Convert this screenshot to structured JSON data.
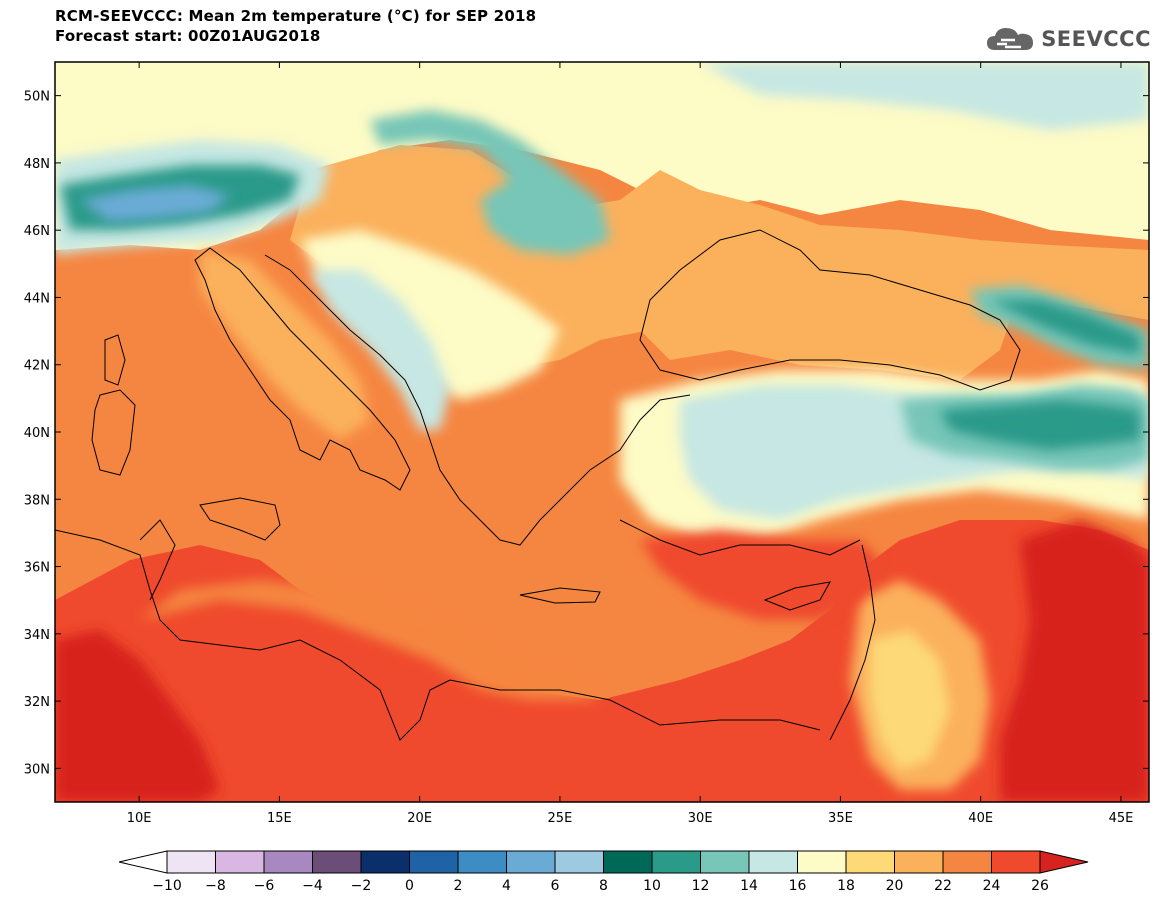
{
  "header": {
    "title_line1": "RCM-SEEVCCC: Mean 2m temperature (°C) for SEP 2018",
    "title_line2": "Forecast start: 00Z01AUG2018",
    "logo_text": "SEEVCCC"
  },
  "map": {
    "lat_range": [
      29,
      51
    ],
    "lon_range": [
      7,
      46
    ],
    "lat_labels": [
      "50N",
      "48N",
      "46N",
      "44N",
      "42N",
      "40N",
      "38N",
      "36N",
      "34N",
      "32N",
      "30N"
    ],
    "lat_values": [
      50,
      48,
      46,
      44,
      42,
      40,
      38,
      36,
      34,
      32,
      30
    ],
    "lon_labels": [
      "10E",
      "15E",
      "20E",
      "25E",
      "30E",
      "35E",
      "40E",
      "45E"
    ],
    "lon_values": [
      10,
      15,
      20,
      25,
      30,
      35,
      40,
      45
    ]
  },
  "colorbar": {
    "tick_labels": [
      "-10",
      "-8",
      "-6",
      "-4",
      "-2",
      "0",
      "2",
      "4",
      "6",
      "8",
      "10",
      "12",
      "14",
      "16",
      "18",
      "20",
      "22",
      "24",
      "26"
    ],
    "under_color": "#ffffff",
    "colors": [
      "#efe4f3",
      "#d9b7e2",
      "#a987c1",
      "#6b4d77",
      "#0a2f6b",
      "#1f63a6",
      "#3d8cc4",
      "#6aabd6",
      "#9ecae1",
      "#006857",
      "#2a9a89",
      "#77c6b8",
      "#c6e7e3",
      "#fdfbc6",
      "#fdd978",
      "#fbb05c",
      "#f58641",
      "#ef4a2d",
      "#d7231f"
    ]
  }
}
